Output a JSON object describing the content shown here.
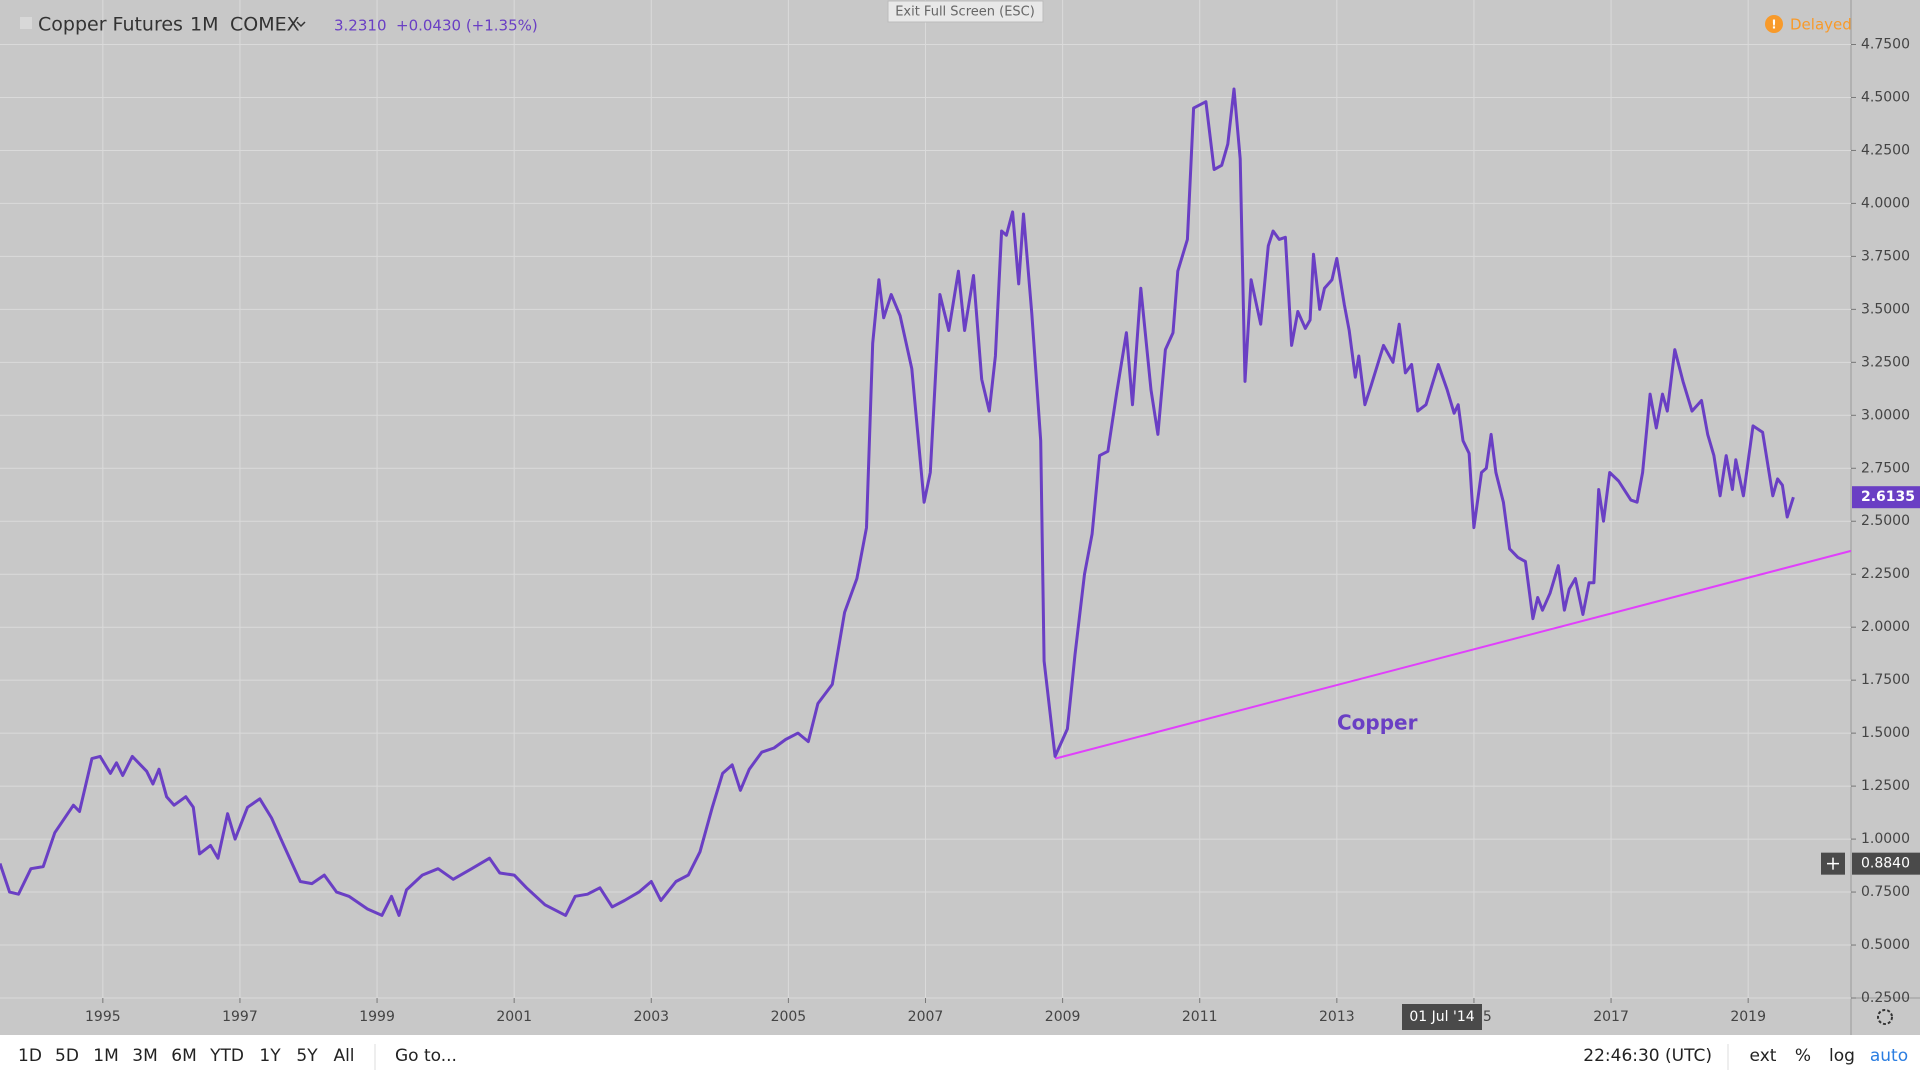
{
  "header": {
    "symbol": "Copper Futures",
    "interval": "1M",
    "exchange": "COMEX",
    "price": "3.2310",
    "change": "+0.0430 (+1.35%)",
    "status": "Delayed",
    "exit_fullscreen": "Exit Full Screen (ESC)"
  },
  "toolbar": {
    "ranges": [
      "1D",
      "5D",
      "1M",
      "3M",
      "6M",
      "YTD",
      "1Y",
      "5Y",
      "All"
    ],
    "goto": "Go to...",
    "clock": "22:46:30 (UTC)",
    "options": [
      "ext",
      "%",
      "log",
      "auto"
    ]
  },
  "chart_data": {
    "type": "line",
    "annotation": "Copper",
    "x": [
      1993.5,
      1993.64,
      1993.77,
      1993.95,
      1994.13,
      1994.3,
      1994.57,
      1994.66,
      1994.84,
      1994.96,
      1995.11,
      1995.2,
      1995.29,
      1995.43,
      1995.64,
      1995.73,
      1995.82,
      1995.93,
      1996.04,
      1996.21,
      1996.32,
      1996.41,
      1996.57,
      1996.68,
      1996.82,
      1996.93,
      1997.11,
      1997.29,
      1997.46,
      1997.64,
      1997.88,
      1998.05,
      1998.23,
      1998.41,
      1998.59,
      1998.86,
      1999.07,
      1999.21,
      1999.32,
      1999.43,
      1999.66,
      1999.89,
      2000.11,
      2000.38,
      2000.64,
      2000.79,
      2001.0,
      2001.18,
      2001.45,
      2001.75,
      2001.89,
      2002.07,
      2002.25,
      2002.43,
      2002.61,
      2002.82,
      2003.0,
      2003.14,
      2003.36,
      2003.54,
      2003.71,
      2003.89,
      2004.04,
      2004.18,
      2004.3,
      2004.43,
      2004.61,
      2004.79,
      2004.96,
      2005.14,
      2005.29,
      2005.43,
      2005.64,
      2005.82,
      2006.0,
      2006.14,
      2006.23,
      2006.32,
      2006.39,
      2006.5,
      2006.63,
      2006.8,
      2006.98,
      2007.07,
      2007.21,
      2007.34,
      2007.48,
      2007.57,
      2007.7,
      2007.82,
      2007.93,
      2008.02,
      2008.11,
      2008.18,
      2008.27,
      2008.36,
      2008.43,
      2008.55,
      2008.68,
      2008.73,
      2008.89,
      2009.07,
      2009.18,
      2009.32,
      2009.43,
      2009.54,
      2009.66,
      2009.79,
      2009.93,
      2010.02,
      2010.14,
      2010.29,
      2010.39,
      2010.5,
      2010.61,
      2010.68,
      2010.82,
      2010.91,
      2011.09,
      2011.21,
      2011.32,
      2011.41,
      2011.5,
      2011.59,
      2011.66,
      2011.75,
      2011.89,
      2012.0,
      2012.07,
      2012.16,
      2012.25,
      2012.34,
      2012.43,
      2012.54,
      2012.61,
      2012.66,
      2012.75,
      2012.82,
      2012.93,
      2013.0,
      2013.11,
      2013.18,
      2013.27,
      2013.32,
      2013.41,
      2013.5,
      2013.68,
      2013.82,
      2013.91,
      2014.0,
      2014.09,
      2014.18,
      2014.3,
      2014.48,
      2014.61,
      2014.71,
      2014.77,
      2014.84,
      2014.93,
      2015.0,
      2015.11,
      2015.18,
      2015.25,
      2015.32,
      2015.43,
      2015.52,
      2015.64,
      2015.75,
      2015.86,
      2015.93,
      2016.0,
      2016.11,
      2016.23,
      2016.32,
      2016.39,
      2016.48,
      2016.59,
      2016.68,
      2016.75,
      2016.82,
      2016.89,
      2016.98,
      2017.11,
      2017.29,
      2017.38,
      2017.46,
      2017.57,
      2017.66,
      2017.75,
      2017.82,
      2017.93,
      2018.05,
      2018.18,
      2018.32,
      2018.41,
      2018.5,
      2018.59,
      2018.68,
      2018.77,
      2018.82,
      2018.93,
      2019.07,
      2019.21,
      2019.36,
      2019.43,
      2019.5,
      2019.57,
      2019.66
    ],
    "series": [
      {
        "name": "Copper Futures",
        "color": "#6a3fc4",
        "values": [
          0.885,
          0.75,
          0.74,
          0.86,
          0.87,
          1.03,
          1.16,
          1.13,
          1.38,
          1.39,
          1.31,
          1.36,
          1.3,
          1.39,
          1.32,
          1.26,
          1.33,
          1.2,
          1.16,
          1.2,
          1.15,
          0.93,
          0.97,
          0.91,
          1.12,
          1.0,
          1.15,
          1.19,
          1.1,
          0.97,
          0.8,
          0.79,
          0.83,
          0.75,
          0.73,
          0.67,
          0.64,
          0.73,
          0.64,
          0.76,
          0.83,
          0.86,
          0.81,
          0.86,
          0.91,
          0.84,
          0.83,
          0.77,
          0.69,
          0.64,
          0.73,
          0.74,
          0.77,
          0.68,
          0.71,
          0.75,
          0.8,
          0.71,
          0.8,
          0.83,
          0.94,
          1.15,
          1.31,
          1.35,
          1.23,
          1.33,
          1.41,
          1.43,
          1.47,
          1.5,
          1.46,
          1.64,
          1.73,
          2.07,
          2.23,
          2.47,
          3.34,
          3.64,
          3.46,
          3.57,
          3.47,
          3.22,
          2.59,
          2.73,
          3.57,
          3.4,
          3.68,
          3.4,
          3.66,
          3.17,
          3.02,
          3.28,
          3.87,
          3.85,
          3.96,
          3.62,
          3.95,
          3.48,
          2.88,
          1.84,
          1.39,
          1.52,
          1.87,
          2.25,
          2.44,
          2.81,
          2.83,
          3.11,
          3.39,
          3.05,
          3.6,
          3.12,
          2.91,
          3.31,
          3.39,
          3.68,
          3.83,
          4.45,
          4.48,
          4.16,
          4.18,
          4.28,
          4.54,
          4.21,
          3.16,
          3.64,
          3.43,
          3.8,
          3.87,
          3.83,
          3.84,
          3.33,
          3.49,
          3.41,
          3.45,
          3.76,
          3.5,
          3.6,
          3.64,
          3.74,
          3.52,
          3.4,
          3.18,
          3.28,
          3.05,
          3.14,
          3.33,
          3.25,
          3.43,
          3.2,
          3.24,
          3.02,
          3.05,
          3.24,
          3.12,
          3.01,
          3.05,
          2.88,
          2.82,
          2.47,
          2.73,
          2.75,
          2.91,
          2.73,
          2.59,
          2.37,
          2.33,
          2.31,
          2.04,
          2.14,
          2.08,
          2.16,
          2.29,
          2.08,
          2.18,
          2.23,
          2.06,
          2.21,
          2.21,
          2.65,
          2.5,
          2.73,
          2.69,
          2.6,
          2.59,
          2.73,
          3.1,
          2.94,
          3.1,
          3.02,
          3.31,
          3.16,
          3.02,
          3.07,
          2.91,
          2.81,
          2.62,
          2.81,
          2.65,
          2.79,
          2.62,
          2.95,
          2.92,
          2.62,
          2.7,
          2.67,
          2.52,
          2.6135
        ]
      }
    ],
    "trendline": {
      "x": [
        2008.89,
        2020.5
      ],
      "values": [
        1.38,
        2.36
      ],
      "color": "#e040fb"
    },
    "crosshair": {
      "price": {
        "value": 0.884,
        "label": "0.8840"
      },
      "date": "01 Jul '14"
    },
    "xlim": [
      1993.5,
      2020.5
    ],
    "xticks": [
      1995,
      1997,
      1999,
      2001,
      2003,
      2005,
      2007,
      2009,
      2011,
      2013,
      2015,
      2017,
      2019
    ],
    "ylim": [
      0.25,
      4.96
    ],
    "yticks": [
      {
        "value": 0.25,
        "label": "0.2500"
      },
      {
        "value": 0.5,
        "label": "0.5000"
      },
      {
        "value": 0.75,
        "label": "0.7500"
      },
      {
        "value": 1,
        "label": "1.0000"
      },
      {
        "value": 1.25,
        "label": "1.2500"
      },
      {
        "value": 1.5,
        "label": "1.5000"
      },
      {
        "value": 1.75,
        "label": "1.7500"
      },
      {
        "value": 2,
        "label": "2.0000"
      },
      {
        "value": 2.25,
        "label": "2.2500"
      },
      {
        "value": 2.5,
        "label": "2.5000"
      },
      {
        "value": 2.75,
        "label": "2.7500"
      },
      {
        "value": 3,
        "label": "3.0000"
      },
      {
        "value": 3.25,
        "label": "3.2500"
      },
      {
        "value": 3.5,
        "label": "3.5000"
      },
      {
        "value": 3.75,
        "label": "3.7500"
      },
      {
        "value": 4,
        "label": "4.0000"
      },
      {
        "value": 4.25,
        "label": "4.2500"
      },
      {
        "value": 4.5,
        "label": "4.5000"
      },
      {
        "value": 4.75,
        "label": "4.7500"
      }
    ],
    "grid": true
  }
}
